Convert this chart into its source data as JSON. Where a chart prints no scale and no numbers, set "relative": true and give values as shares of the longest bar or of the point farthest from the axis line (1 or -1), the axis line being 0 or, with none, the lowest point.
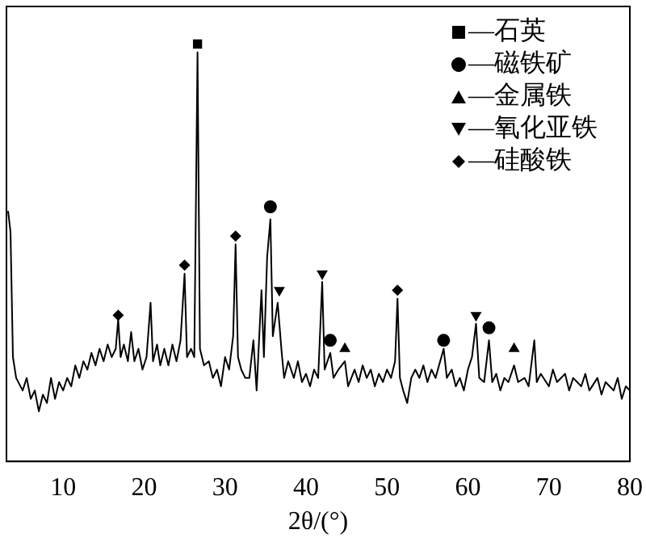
{
  "chart_data": {
    "type": "line",
    "relative": true,
    "xlabel": "2θ/(°)",
    "xlim": [
      3,
      80
    ],
    "xticks": [
      10,
      20,
      30,
      40,
      50,
      60,
      70,
      80
    ],
    "grid": false,
    "legend": "top right",
    "tick_labels": "x",
    "series": [
      {
        "type": "line",
        "color": "#000000",
        "marker": "none",
        "line_style": "solid",
        "x": [
          3.2,
          3.5,
          3.8,
          4.2,
          5,
          5.5,
          6,
          6.5,
          7,
          7.5,
          8,
          8.5,
          9,
          9.5,
          10,
          10.5,
          11,
          11.5,
          12,
          12.5,
          13,
          13.5,
          14,
          14.5,
          15,
          15.5,
          16,
          16.5,
          16.8,
          17.1,
          17.5,
          18,
          18.4,
          18.8,
          19.3,
          19.8,
          20.3,
          20.8,
          21.1,
          21.6,
          22,
          22.5,
          23,
          23.5,
          24,
          24.5,
          25,
          25.3,
          25.8,
          26.2,
          26.6,
          26.9,
          27.4,
          28,
          28.5,
          29,
          29.5,
          30,
          30.5,
          31,
          31.3,
          31.6,
          32,
          32.5,
          33,
          33.5,
          33.9,
          34.5,
          34.8,
          35.2,
          35.6,
          35.9,
          36.5,
          37,
          37.3,
          37.8,
          38.5,
          39,
          39.5,
          40,
          40.5,
          41,
          41.5,
          42,
          42.3,
          43,
          43.4,
          44,
          44.8,
          45.2,
          46,
          46.5,
          47,
          47.5,
          48,
          48.5,
          49,
          49.5,
          50,
          50.5,
          51,
          51.3,
          51.6,
          52,
          52.5,
          53,
          53.5,
          54,
          54.5,
          55,
          55.5,
          56,
          57,
          57.4,
          58,
          58.5,
          59,
          59.5,
          60,
          60.5,
          61,
          61.4,
          62,
          62.6,
          63,
          63.5,
          64,
          64.5,
          65,
          65.7,
          66.2,
          67,
          67.5,
          68.2,
          68.5,
          69,
          70,
          70.5,
          71,
          72,
          72.5,
          73,
          74,
          74.5,
          75,
          76,
          76.5,
          77,
          78,
          78.5,
          79,
          79.5,
          80
        ],
        "values": [
          0.6,
          0.55,
          0.25,
          0.2,
          0.17,
          0.2,
          0.15,
          0.17,
          0.12,
          0.16,
          0.14,
          0.2,
          0.15,
          0.19,
          0.17,
          0.2,
          0.18,
          0.23,
          0.2,
          0.24,
          0.22,
          0.26,
          0.23,
          0.27,
          0.24,
          0.28,
          0.25,
          0.27,
          0.34,
          0.25,
          0.28,
          0.24,
          0.31,
          0.24,
          0.27,
          0.22,
          0.25,
          0.38,
          0.24,
          0.28,
          0.23,
          0.27,
          0.23,
          0.28,
          0.24,
          0.29,
          0.45,
          0.25,
          0.27,
          0.25,
          0.98,
          0.27,
          0.23,
          0.24,
          0.2,
          0.22,
          0.18,
          0.25,
          0.22,
          0.3,
          0.52,
          0.25,
          0.22,
          0.2,
          0.2,
          0.29,
          0.17,
          0.41,
          0.25,
          0.49,
          0.58,
          0.3,
          0.38,
          0.26,
          0.2,
          0.24,
          0.2,
          0.24,
          0.19,
          0.21,
          0.18,
          0.22,
          0.2,
          0.43,
          0.22,
          0.26,
          0.2,
          0.22,
          0.24,
          0.18,
          0.22,
          0.19,
          0.23,
          0.2,
          0.22,
          0.18,
          0.21,
          0.19,
          0.22,
          0.2,
          0.24,
          0.39,
          0.2,
          0.17,
          0.14,
          0.2,
          0.22,
          0.2,
          0.23,
          0.19,
          0.22,
          0.2,
          0.27,
          0.2,
          0.22,
          0.18,
          0.2,
          0.17,
          0.22,
          0.25,
          0.33,
          0.2,
          0.19,
          0.29,
          0.19,
          0.21,
          0.17,
          0.2,
          0.19,
          0.23,
          0.19,
          0.2,
          0.18,
          0.29,
          0.19,
          0.21,
          0.18,
          0.22,
          0.19,
          0.21,
          0.17,
          0.2,
          0.18,
          0.21,
          0.17,
          0.2,
          0.16,
          0.19,
          0.17,
          0.2,
          0.15,
          0.18,
          0.17
        ]
      },
      {
        "type": "scatter",
        "name": "—石英",
        "color": "#000000",
        "marker": "square",
        "x": [
          26.6
        ],
        "values": [
          1.0
        ]
      },
      {
        "type": "scatter",
        "name": "—磁铁矿",
        "color": "#000000",
        "marker": "circle",
        "x": [
          35.6,
          43,
          57,
          62.6
        ],
        "values": [
          0.61,
          0.29,
          0.29,
          0.32
        ]
      },
      {
        "type": "scatter",
        "name": "—金属铁",
        "color": "#000000",
        "marker": "triangle",
        "x": [
          44.8,
          65.7
        ],
        "values": [
          0.27,
          0.27
        ]
      },
      {
        "type": "scatter",
        "name": "—氧化亚铁",
        "color": "#000000",
        "marker": "triangle_down",
        "x": [
          36.7,
          42,
          61
        ],
        "values": [
          0.41,
          0.45,
          0.35
        ]
      },
      {
        "type": "scatter",
        "name": "—硅酸铁",
        "color": "#000000",
        "marker": "diamond",
        "x": [
          16.8,
          25,
          31.3,
          51.3
        ],
        "values": [
          0.35,
          0.47,
          0.54,
          0.41
        ]
      }
    ]
  }
}
